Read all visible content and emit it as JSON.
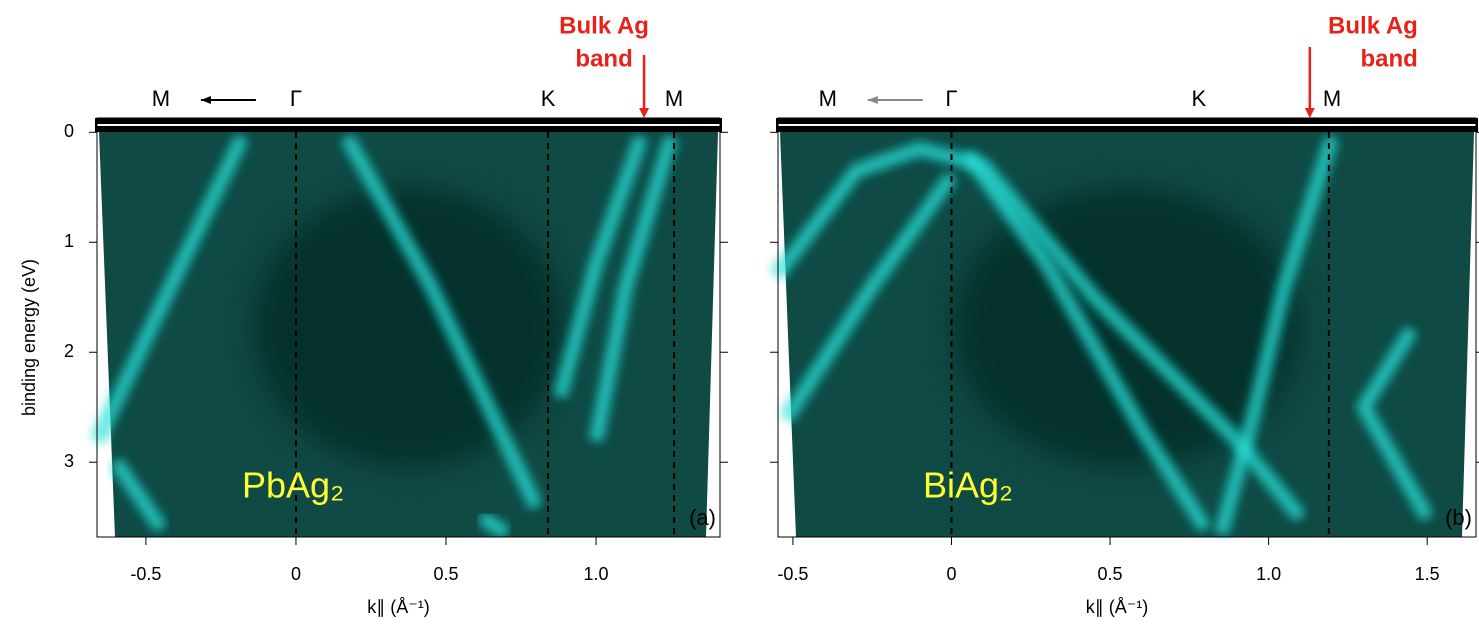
{
  "chart_data": [
    {
      "type": "image",
      "panel_label": "(a)",
      "sample_label": "PbAg₂",
      "xlabel": "k∥ (Å⁻¹)",
      "ylabel": "binding energy (eV)",
      "xlim": [
        -0.663,
        1.413
      ],
      "ylim": [
        -0.13,
        3.68
      ],
      "y_inverted": true,
      "show_ytick_labels": true,
      "xticks": [
        -0.5,
        0,
        0.5,
        {
          "value": 1,
          "label": "1.0"
        }
      ],
      "yticks": [
        0,
        1,
        2,
        3
      ],
      "symmetry_points": [
        {
          "label": "M",
          "k": -0.45
        },
        {
          "label": "Γ",
          "k": 0
        },
        {
          "label": "K",
          "k": 0.84
        },
        {
          "label": "M",
          "k": 1.26
        }
      ],
      "dashed_lines": [
        0,
        0.84,
        1.26
      ],
      "annotation": {
        "lines": [
          "Bulk Ag",
          "band"
        ],
        "k": 1.16,
        "color": "#e8221a",
        "align": "middle"
      }
    },
    {
      "type": "image",
      "panel_label": "(b)",
      "sample_label": "BiAg₂",
      "xlabel": "k∥ (Å⁻¹)",
      "xlim": [
        -0.547,
        1.654
      ],
      "ylim": [
        -0.13,
        3.68
      ],
      "y_inverted": true,
      "show_ytick_labels": false,
      "xticks": [
        -0.5,
        0,
        0.5,
        {
          "value": 1,
          "label": "1.0"
        },
        1.5
      ],
      "yticks": [
        0,
        1,
        2,
        3
      ],
      "symmetry_points": [
        {
          "label": "M",
          "k": -0.39
        },
        {
          "label": "Γ",
          "k": 0
        },
        {
          "label": "K",
          "k": 0.78
        },
        {
          "label": "M",
          "k": 1.2
        }
      ],
      "dashed_lines": [
        0,
        1.19
      ],
      "annotation": {
        "lines": [
          "Bulk Ag",
          "band"
        ],
        "k": 1.13,
        "color": "#e8221a",
        "align": "end"
      }
    }
  ]
}
